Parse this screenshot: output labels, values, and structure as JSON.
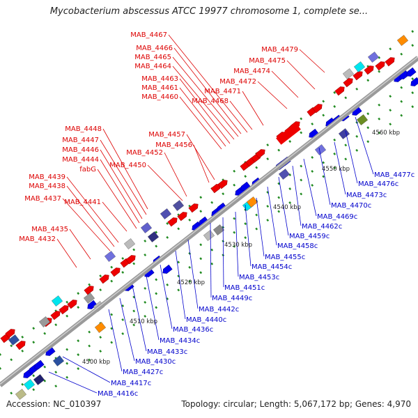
{
  "title": "Mycobacterium abscessus ATCC 19977 chromosome 1, complete se...",
  "footer": {
    "accession": "Accession: NC_010397",
    "summary": "Topology: circular; Length: 5,067,172 bp; Genes: 4,970"
  },
  "colors": {
    "forward_label": "#dd0000",
    "reverse_label": "#0000cc",
    "backbone": "#9a9a9a",
    "tick_dots": "#228b22"
  },
  "ticks": [
    "4500 kbp",
    "4510 kbp",
    "4520 kbp",
    "4530 kbp",
    "4540 kbp",
    "4550 kbp",
    "4560 kbp"
  ],
  "forward_labels": [
    "MAB_4467",
    "MAB_4466",
    "MAB_4465",
    "MAB_4464",
    "MAB_4463",
    "MAB_4461",
    "MAB_4460",
    "MAB_4479",
    "MAB_4475",
    "MAB_4474",
    "MAB_4472",
    "MAB_4471",
    "MAB_4468",
    "MAB_4448",
    "MAB_4447",
    "MAB_4446",
    "MAB_4444",
    "fabG",
    "MAB_4457",
    "MAB_4456",
    "MAB_4452",
    "MAB_4450",
    "MAB_4439",
    "MAB_4438",
    "MAB_4437",
    "MAB_4441",
    "MAB_4435",
    "MAB_4432"
  ],
  "reverse_labels": [
    "MAB_4477c",
    "MAB_4476c",
    "MAB_4473c",
    "MAB_4470c",
    "MAB_4469c",
    "MAB_4462c",
    "MAB_4459c",
    "MAB_4458c",
    "MAB_4455c",
    "MAB_4454c",
    "MAB_4453c",
    "MAB_4451c",
    "MAB_4449c",
    "MAB_4442c",
    "MAB_4440c",
    "MAB_4436c",
    "MAB_4434c",
    "MAB_4433c",
    "MAB_4430c",
    "MAB_4427c",
    "MAB_4417c",
    "MAB_4416c"
  ]
}
